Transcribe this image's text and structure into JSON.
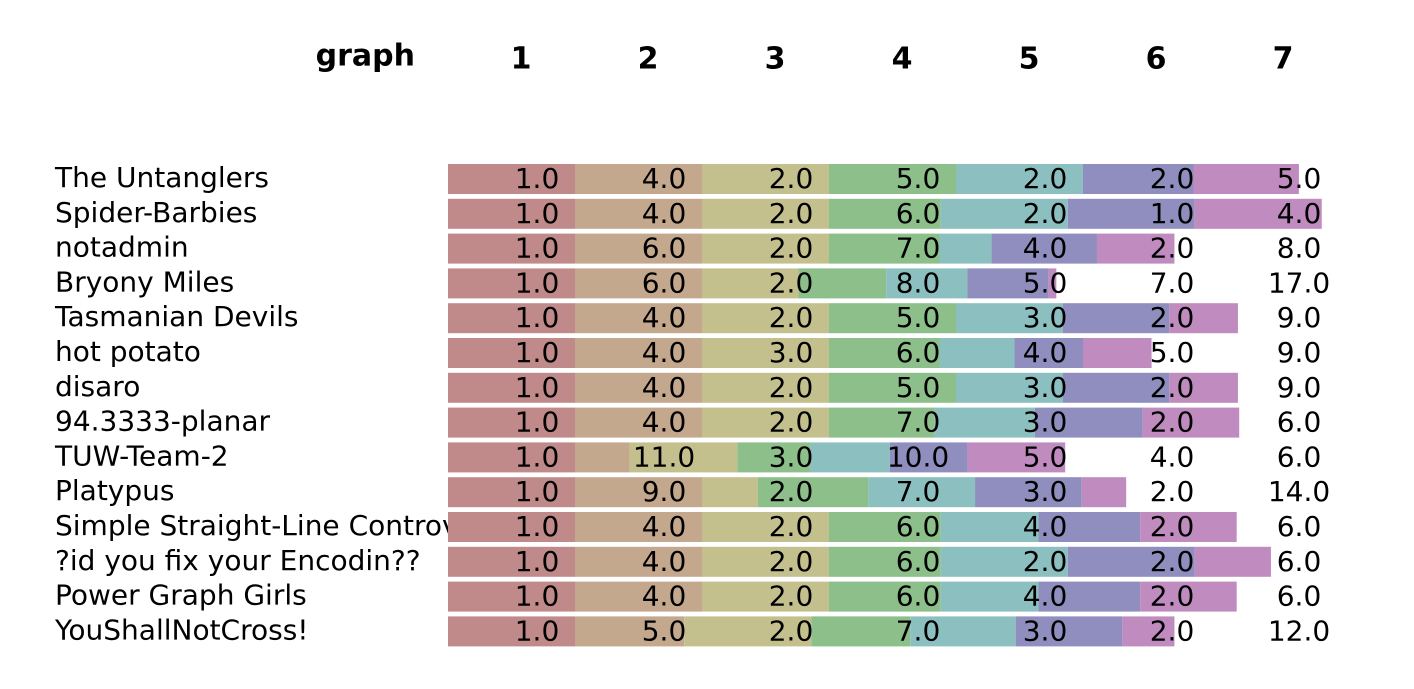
{
  "header": {
    "title": "graph",
    "columns": [
      "1",
      "2",
      "3",
      "4",
      "5",
      "6",
      "7"
    ]
  },
  "colors": [
    "#c08a8a",
    "#c4a88e",
    "#c4c08e",
    "#8cbf8a",
    "#8cc0c0",
    "#8f8ebe",
    "#c08cc0"
  ],
  "rows": [
    {
      "name": "The Untanglers",
      "ranks": [
        "1.0",
        "4.0",
        "2.0",
        "5.0",
        "2.0",
        "2.0",
        "5.0"
      ],
      "scores": [
        1,
        1,
        1,
        1,
        1,
        0.87,
        0.83
      ]
    },
    {
      "name": "Spider-Barbies",
      "ranks": [
        "1.0",
        "4.0",
        "2.0",
        "6.0",
        "2.0",
        "1.0",
        "4.0"
      ],
      "scores": [
        1,
        1,
        1,
        0.88,
        1,
        1,
        1
      ]
    },
    {
      "name": "notadmin",
      "ranks": [
        "1.0",
        "6.0",
        "2.0",
        "7.0",
        "4.0",
        "2.0",
        "8.0"
      ],
      "scores": [
        1,
        1,
        1,
        0.87,
        0.41,
        0.83,
        0.61
      ]
    },
    {
      "name": "Bryony Miles",
      "ranks": [
        "1.0",
        "6.0",
        "2.0",
        "8.0",
        "5.0",
        "7.0",
        "17.0"
      ],
      "scores": [
        1,
        1,
        0.76,
        0.69,
        0.64,
        0.64,
        0.06
      ]
    },
    {
      "name": "Tasmanian Devils",
      "ranks": [
        "1.0",
        "4.0",
        "2.0",
        "5.0",
        "3.0",
        "2.0",
        "9.0"
      ],
      "scores": [
        1,
        1,
        1,
        1,
        0.84,
        0.84,
        0.54
      ]
    },
    {
      "name": "hot potato",
      "ranks": [
        "1.0",
        "4.0",
        "3.0",
        "6.0",
        "4.0",
        "5.0",
        "9.0"
      ],
      "scores": [
        1,
        1,
        1,
        0.87,
        0.59,
        0.54,
        0.54
      ]
    },
    {
      "name": "disaro",
      "ranks": [
        "1.0",
        "4.0",
        "2.0",
        "5.0",
        "3.0",
        "2.0",
        "9.0"
      ],
      "scores": [
        1,
        1,
        1,
        1,
        0.84,
        0.84,
        0.54
      ]
    },
    {
      "name": "94.3333-planar",
      "ranks": [
        "1.0",
        "4.0",
        "2.0",
        "7.0",
        "3.0",
        "2.0",
        "6.0"
      ],
      "scores": [
        1,
        1,
        1,
        0.83,
        0.79,
        0.85,
        0.76
      ]
    },
    {
      "name": "TUW-Team-2",
      "ranks": [
        "1.0",
        "11.0",
        "3.0",
        "10.0",
        "5.0",
        "4.0",
        "6.0"
      ],
      "scores": [
        1,
        0.43,
        0.85,
        0.57,
        0.63,
        0.61,
        0.77
      ]
    },
    {
      "name": "Platypus",
      "ranks": [
        "1.0",
        "9.0",
        "2.0",
        "7.0",
        "3.0",
        "2.0",
        "14.0"
      ],
      "scores": [
        1,
        1,
        0.44,
        0.87,
        0.84,
        0.84,
        0.35
      ]
    },
    {
      "name": "Simple Straight-Line Controversy",
      "ranks": [
        "1.0",
        "4.0",
        "2.0",
        "6.0",
        "4.0",
        "2.0",
        "6.0"
      ],
      "scores": [
        1,
        1,
        1,
        0.88,
        0.77,
        0.8,
        0.76
      ]
    },
    {
      "name": "?id you fix your Encodin??",
      "ranks": [
        "1.0",
        "4.0",
        "2.0",
        "6.0",
        "2.0",
        "2.0",
        "6.0"
      ],
      "scores": [
        1,
        1,
        1,
        0.88,
        1,
        1,
        0.6
      ]
    },
    {
      "name": "Power Graph Girls",
      "ranks": [
        "1.0",
        "4.0",
        "2.0",
        "6.0",
        "4.0",
        "2.0",
        "6.0"
      ],
      "scores": [
        1,
        1,
        1,
        0.88,
        0.77,
        0.8,
        0.76
      ]
    },
    {
      "name": "YouShallNotCross!",
      "ranks": [
        "1.0",
        "5.0",
        "2.0",
        "7.0",
        "3.0",
        "2.0",
        "12.0"
      ],
      "scores": [
        1,
        0.86,
        1,
        0.78,
        0.83,
        0.84,
        0.41
      ]
    }
  ]
}
